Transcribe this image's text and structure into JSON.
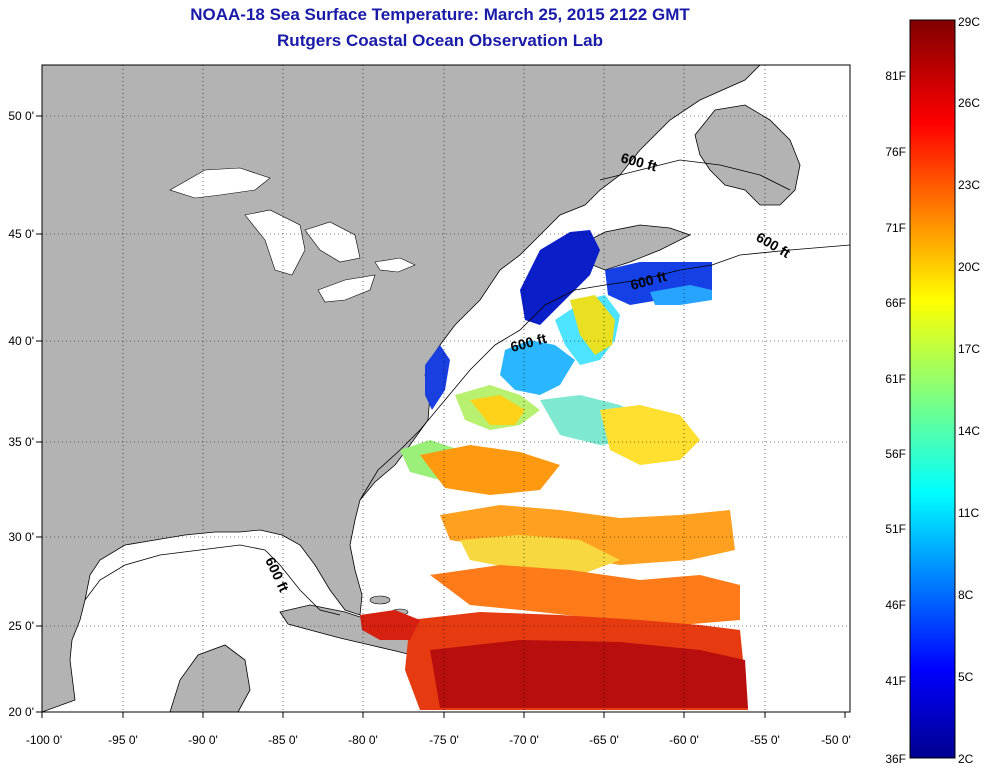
{
  "header": {
    "title": "NOAA-18 Sea Surface Temperature:  March 25, 2015 2122 GMT",
    "subtitle": "Rutgers Coastal Ocean Observation Lab"
  },
  "map": {
    "lon_ticks": [
      "-100 0'",
      "-95 0'",
      "-90 0'",
      "-85 0'",
      "-80 0'",
      "-75 0'",
      "-70 0'",
      "-65 0'",
      "-60 0'",
      "-55 0'",
      "-50 0'"
    ],
    "lat_ticks": [
      "50 0'",
      "45 0'",
      "40 0'",
      "35 0'",
      "30 0'",
      "25 0'",
      "20 0'"
    ],
    "depth_labels": [
      "600 ft",
      "600 ft",
      "600 ft",
      "600 ft",
      "600 ft"
    ],
    "colors": {
      "land": "#b3b3b3",
      "ocean": "#ffffff"
    }
  },
  "colorbar": {
    "celsius": [
      "29C",
      "26C",
      "23C",
      "20C",
      "17C",
      "14C",
      "11C",
      "8C",
      "5C",
      "2C"
    ],
    "fahrenheit": [
      "81F",
      "76F",
      "71F",
      "66F",
      "61F",
      "56F",
      "51F",
      "46F",
      "41F",
      "36F"
    ],
    "range_c": [
      2,
      29
    ]
  }
}
